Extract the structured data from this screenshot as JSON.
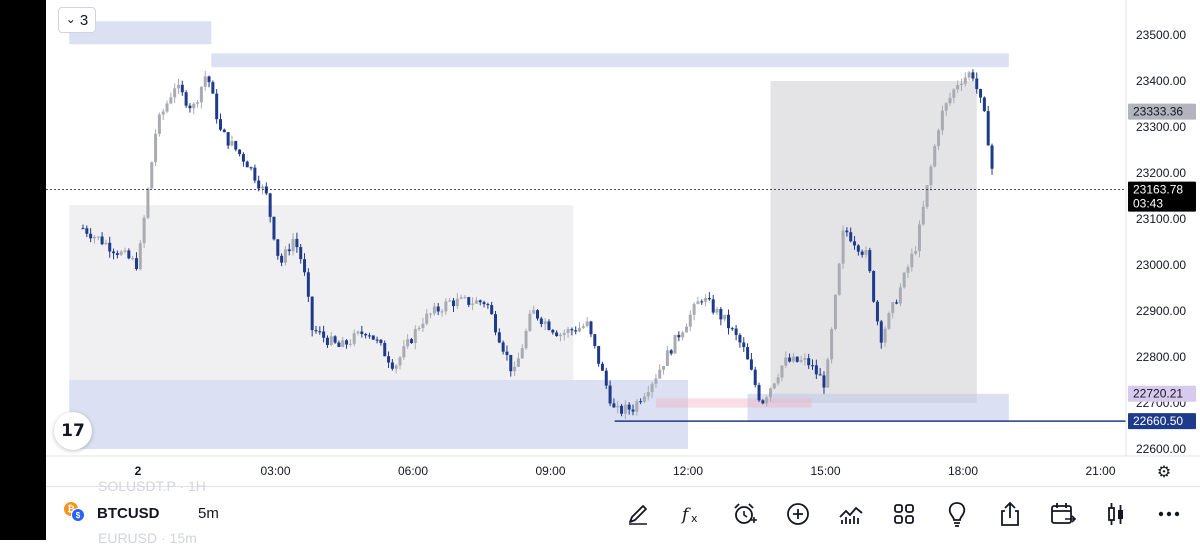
{
  "watchlist_hint": {
    "top": "SOLUSDT.P · 1H",
    "bottom": "EURUSD · 15m"
  },
  "collapse": {
    "count": "3"
  },
  "symbol_bar": {
    "symbol": "BTCUSD",
    "interval": "5m"
  },
  "toolbar_icons": [
    "brush-icon",
    "fx-indicators-icon",
    "alert-clock-icon",
    "add-icon",
    "compare-chart-icon",
    "layouts-grid-icon",
    "ideas-bulb-icon",
    "share-icon",
    "replay-calendar-icon",
    "candle-style-icon",
    "more-icon"
  ],
  "colors": {
    "up": "#a9abb2",
    "down": "#1e3a8a",
    "zone_blue": "#dde2f2",
    "zone_gray": "#ebebec",
    "price_label": "#000000",
    "level_label": "#1e3a8a"
  },
  "chart_data": {
    "type": "candlestick",
    "symbol": "BTCUSD",
    "interval": "5m",
    "ylim": [
      22580,
      23560
    ],
    "y_ticks": [
      "23500.00",
      "23400.00",
      "23300.00",
      "23200.00",
      "23100.00",
      "23000.00",
      "22900.00",
      "22800.00",
      "22700.00",
      "22600.00"
    ],
    "x_ticks": [
      "2",
      "03:00",
      "06:00",
      "09:00",
      "12:00",
      "15:00",
      "18:00",
      "21:00"
    ],
    "price_labels": {
      "gray": "23333.36",
      "current": "23163.78",
      "countdown": "03:43",
      "purple": "22720.21",
      "blue_line": "22660.50"
    },
    "key_levels": {
      "current": 23163.78,
      "gray": 23333.36,
      "purple": 22720.21,
      "blue_line": 22660.5
    },
    "path": [
      [
        -1.2,
        23080
      ],
      [
        -0.6,
        23040
      ],
      [
        0.0,
        23000
      ],
      [
        0.4,
        23300
      ],
      [
        0.8,
        23390
      ],
      [
        1.2,
        23340
      ],
      [
        1.5,
        23420
      ],
      [
        1.8,
        23290
      ],
      [
        2.4,
        23220
      ],
      [
        2.8,
        23150
      ],
      [
        3.1,
        23000
      ],
      [
        3.4,
        23060
      ],
      [
        3.6,
        23000
      ],
      [
        3.8,
        22860
      ],
      [
        4.4,
        22820
      ],
      [
        5.0,
        22860
      ],
      [
        5.6,
        22780
      ],
      [
        6.2,
        22880
      ],
      [
        6.8,
        22920
      ],
      [
        7.6,
        22920
      ],
      [
        8.2,
        22760
      ],
      [
        8.6,
        22900
      ],
      [
        9.2,
        22850
      ],
      [
        9.8,
        22870
      ],
      [
        10.4,
        22680
      ],
      [
        10.8,
        22690
      ],
      [
        11.3,
        22760
      ],
      [
        11.8,
        22850
      ],
      [
        12.3,
        22930
      ],
      [
        12.8,
        22880
      ],
      [
        13.2,
        22820
      ],
      [
        13.6,
        22700
      ],
      [
        14.1,
        22790
      ],
      [
        14.6,
        22790
      ],
      [
        15.0,
        22740
      ],
      [
        15.4,
        23080
      ],
      [
        15.9,
        23020
      ],
      [
        16.2,
        22840
      ],
      [
        16.6,
        22940
      ],
      [
        17.0,
        23050
      ],
      [
        17.5,
        23320
      ],
      [
        17.9,
        23400
      ],
      [
        18.2,
        23420
      ],
      [
        18.5,
        23310
      ],
      [
        18.7,
        23160
      ]
    ],
    "zones": [
      {
        "color": "blue",
        "t0": -1.5,
        "t1": 1.6,
        "p0": 23480,
        "p1": 23530
      },
      {
        "color": "blue",
        "t0": 1.6,
        "t1": 19.0,
        "p0": 23430,
        "p1": 23460
      },
      {
        "color": "gray",
        "t0": -1.5,
        "t1": 9.5,
        "p0": 22750,
        "p1": 23130
      },
      {
        "color": "blue",
        "t0": -1.5,
        "t1": 9.5,
        "p0": 22600,
        "p1": 22750
      },
      {
        "color": "blue",
        "t0": 9.5,
        "t1": 12.0,
        "p0": 22600,
        "p1": 22750
      },
      {
        "color": "darkgray",
        "t0": 13.8,
        "t1": 18.3,
        "p0": 22700,
        "p1": 23400
      },
      {
        "color": "blue",
        "t0": 13.3,
        "t1": 19.0,
        "p0": 22660,
        "p1": 22720
      },
      {
        "color": "pink",
        "t0": 11.3,
        "t1": 14.7,
        "p0": 22690,
        "p1": 22710
      }
    ]
  }
}
